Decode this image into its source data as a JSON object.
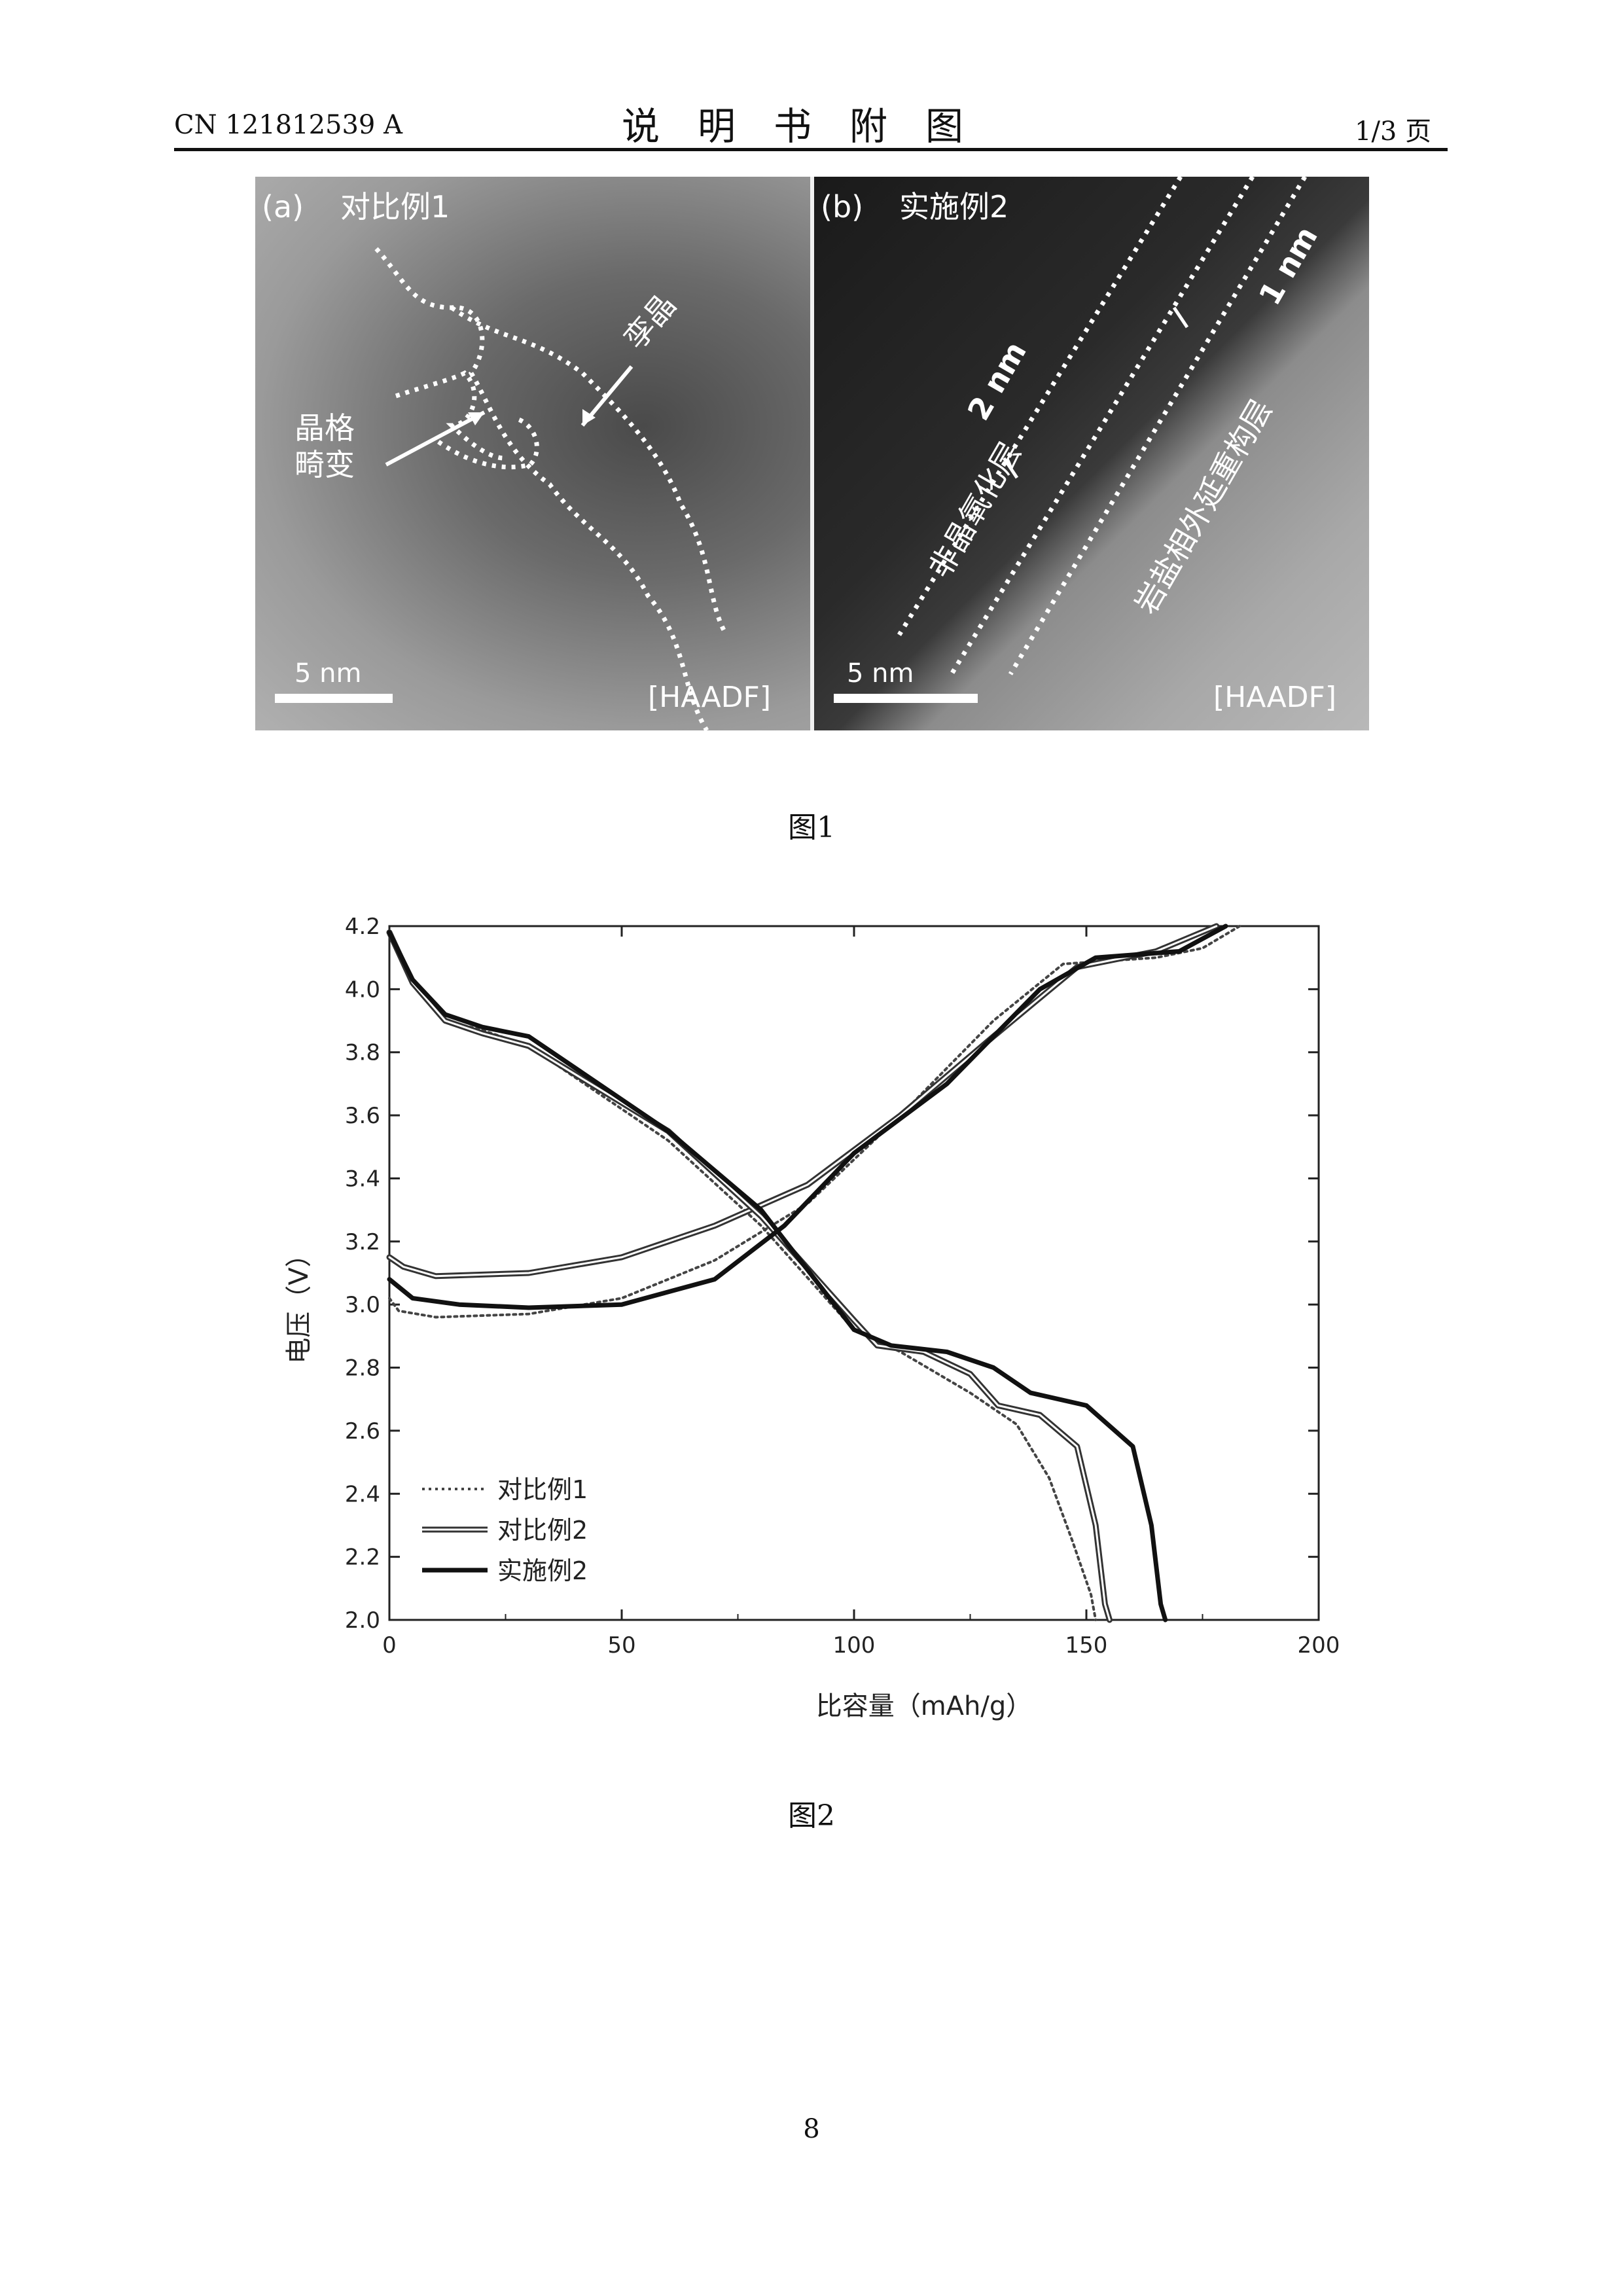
{
  "header": {
    "doc_number": "CN 121812539 A",
    "section_title": "说明书附图",
    "page_of": "1/3 页"
  },
  "figure1": {
    "caption": "图1",
    "panel_a": {
      "tag": "(a)",
      "title": "对比例1",
      "label_defect": "孪晶",
      "label_distortion_line1": "晶格",
      "label_distortion_line2": "畸变",
      "scale": "5 nm",
      "mode": "[HAADF]"
    },
    "panel_b": {
      "tag": "(b)",
      "title": "实施例2",
      "label_amorphous": "非晶氧化层",
      "label_amorphous_thickness": "2 nm",
      "label_epitaxial": "岩盐相外延重构层",
      "label_epitaxial_thickness": "1 nm",
      "scale": "5 nm",
      "mode": "[HAADF]"
    }
  },
  "figure2": {
    "caption": "图2"
  },
  "chart_data": {
    "type": "line",
    "title": "",
    "xlabel": "比容量（mAh/g）",
    "ylabel": "电压（V）",
    "xlim": [
      0,
      200
    ],
    "ylim": [
      2.0,
      4.2
    ],
    "xticks": [
      0,
      50,
      100,
      150,
      200
    ],
    "yticks": [
      2.0,
      2.2,
      2.4,
      2.6,
      2.8,
      3.0,
      3.2,
      3.4,
      3.6,
      3.8,
      4.0,
      4.2
    ],
    "legend_position": "bottom-left",
    "series": [
      {
        "name": "对比例1",
        "style": "dotted",
        "charge": [
          [
            0,
            3.02
          ],
          [
            2,
            2.98
          ],
          [
            10,
            2.96
          ],
          [
            30,
            2.97
          ],
          [
            50,
            3.02
          ],
          [
            70,
            3.14
          ],
          [
            90,
            3.32
          ],
          [
            110,
            3.6
          ],
          [
            130,
            3.9
          ],
          [
            145,
            4.08
          ],
          [
            165,
            4.1
          ],
          [
            175,
            4.13
          ],
          [
            183,
            4.2
          ]
        ],
        "discharge": [
          [
            0,
            4.18
          ],
          [
            5,
            4.02
          ],
          [
            12,
            3.9
          ],
          [
            20,
            3.87
          ],
          [
            30,
            3.82
          ],
          [
            60,
            3.52
          ],
          [
            80,
            3.25
          ],
          [
            100,
            2.92
          ],
          [
            110,
            2.85
          ],
          [
            125,
            2.72
          ],
          [
            135,
            2.62
          ],
          [
            142,
            2.45
          ],
          [
            147,
            2.25
          ],
          [
            151,
            2.08
          ],
          [
            152,
            2.0
          ]
        ]
      },
      {
        "name": "对比例2",
        "style": "double",
        "charge": [
          [
            0,
            3.15
          ],
          [
            3,
            3.12
          ],
          [
            10,
            3.09
          ],
          [
            30,
            3.1
          ],
          [
            50,
            3.15
          ],
          [
            70,
            3.25
          ],
          [
            90,
            3.38
          ],
          [
            110,
            3.6
          ],
          [
            130,
            3.85
          ],
          [
            148,
            4.07
          ],
          [
            165,
            4.12
          ],
          [
            178,
            4.2
          ]
        ],
        "discharge": [
          [
            0,
            4.18
          ],
          [
            5,
            4.02
          ],
          [
            12,
            3.9
          ],
          [
            20,
            3.86
          ],
          [
            30,
            3.82
          ],
          [
            60,
            3.55
          ],
          [
            80,
            3.28
          ],
          [
            100,
            2.95
          ],
          [
            105,
            2.87
          ],
          [
            115,
            2.85
          ],
          [
            125,
            2.78
          ],
          [
            131,
            2.68
          ],
          [
            140,
            2.65
          ],
          [
            148,
            2.55
          ],
          [
            152,
            2.3
          ],
          [
            154,
            2.05
          ],
          [
            155,
            2.0
          ]
        ]
      },
      {
        "name": "实施例2",
        "style": "solid",
        "charge": [
          [
            0,
            3.08
          ],
          [
            5,
            3.02
          ],
          [
            15,
            3.0
          ],
          [
            30,
            2.99
          ],
          [
            50,
            3.0
          ],
          [
            70,
            3.08
          ],
          [
            85,
            3.25
          ],
          [
            100,
            3.48
          ],
          [
            120,
            3.7
          ],
          [
            140,
            4.0
          ],
          [
            152,
            4.1
          ],
          [
            170,
            4.12
          ],
          [
            180,
            4.2
          ]
        ],
        "discharge": [
          [
            0,
            4.18
          ],
          [
            5,
            4.03
          ],
          [
            12,
            3.92
          ],
          [
            20,
            3.88
          ],
          [
            30,
            3.85
          ],
          [
            60,
            3.55
          ],
          [
            80,
            3.3
          ],
          [
            100,
            2.92
          ],
          [
            108,
            2.87
          ],
          [
            120,
            2.85
          ],
          [
            130,
            2.8
          ],
          [
            138,
            2.72
          ],
          [
            150,
            2.68
          ],
          [
            160,
            2.55
          ],
          [
            164,
            2.3
          ],
          [
            166,
            2.05
          ],
          [
            167,
            2.0
          ]
        ]
      }
    ]
  }
}
